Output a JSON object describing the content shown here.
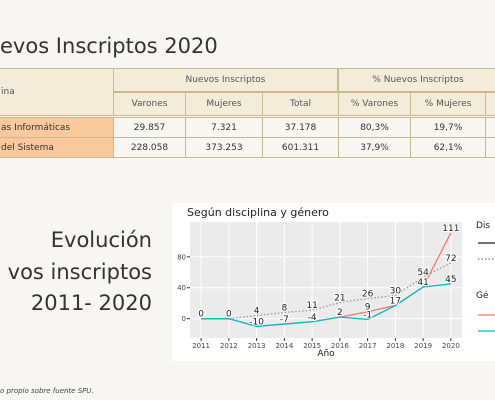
{
  "title": "evos Inscriptos 2020",
  "table": {
    "corner": "ina",
    "group_headers": [
      "Nuevos Inscriptos",
      "% Nuevos Inscriptos"
    ],
    "columns": [
      "Varones",
      "Mujeres",
      "Total",
      "% Varones",
      "% Mujeres"
    ],
    "rows": [
      [
        "as Informáticas",
        "29.857",
        "7.321",
        "37.178",
        "80,3%",
        "19,7%"
      ],
      [
        "del Sistema",
        "228.058",
        "373.253",
        "601.311",
        "37,9%",
        "62,1%"
      ]
    ]
  },
  "side_text": [
    "Evolución",
    "vos inscriptos",
    "2011- 2020"
  ],
  "chart_data": {
    "type": "line",
    "title": "Según disciplina y género",
    "x_label": "Año",
    "x": [
      2011,
      2012,
      2013,
      2014,
      2015,
      2016,
      2017,
      2018,
      2019,
      2020
    ],
    "xlim": [
      2010.6,
      2020.4
    ],
    "xticks": [
      2011,
      2012,
      2013,
      2014,
      2015,
      2016,
      2017,
      2018,
      2019,
      2020
    ],
    "ylim": [
      -25,
      125
    ],
    "yticks": [
      0,
      40,
      80
    ],
    "grid": true,
    "series": [
      {
        "color": "#999999",
        "dash": true,
        "values": [
          0,
          0,
          4,
          8,
          11,
          21,
          26,
          30,
          54,
          72
        ]
      },
      {
        "color": "#f8766d",
        "values": [
          0,
          0,
          -10,
          -7,
          -4,
          2,
          9,
          17,
          41,
          111
        ]
      },
      {
        "color": "#00bfc4",
        "values": [
          0,
          0,
          -10,
          -7,
          -4,
          2,
          -1,
          17,
          41,
          45
        ]
      }
    ],
    "legend_titles": [
      "Dis",
      "Gé"
    ]
  },
  "footnote": "o propio sobre fuente SPU."
}
